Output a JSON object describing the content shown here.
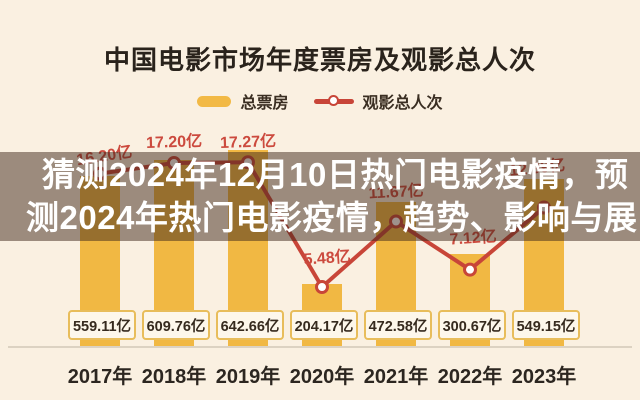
{
  "title": "中国电影市场年度票房及观影总人次",
  "legend": {
    "bar_label": "总票房",
    "line_label": "观影总人次"
  },
  "overlay_banner": {
    "line1": "猜测2024年12月10日热门电影疫情，预",
    "line2": "测2024年热门电影疫情，趋势、影响与展"
  },
  "colors": {
    "background": "#faf0e1",
    "bar": "#f1b843",
    "line": "#c84538",
    "line_label_text": "#cc4a3e",
    "value_box_border": "#e8bd5b",
    "value_box_bg": "#fdf7eb",
    "overlay_bg": "rgba(62,38,26,0.5)",
    "title_text": "#2a231c"
  },
  "chart_data": {
    "type": "bar",
    "subtype": "bar-with-line-overlay",
    "title": "中国电影市场年度票房及观影总人次",
    "categories": [
      "2017年",
      "2018年",
      "2019年",
      "2020年",
      "2021年",
      "2022年",
      "2023年"
    ],
    "series": [
      {
        "name": "总票房",
        "type": "bar",
        "unit": "亿",
        "values": [
          559.11,
          609.76,
          642.66,
          204.17,
          472.58,
          300.67,
          549.15
        ],
        "labels": [
          "559.11亿",
          "609.76亿",
          "642.66亿",
          "204.17亿",
          "472.58亿",
          "300.67亿",
          "549.15亿"
        ]
      },
      {
        "name": "观影总人次",
        "type": "line",
        "unit": "亿",
        "values": [
          16.2,
          17.2,
          17.27,
          5.48,
          11.67,
          7.12,
          12.99
        ],
        "labels": [
          "16.20亿",
          "17.20亿",
          "17.27亿",
          "5.48亿",
          "11.67亿",
          "7.12亿",
          "12.99亿"
        ]
      }
    ],
    "legend_position": "top",
    "grid": false,
    "xlabel": "",
    "ylabel": ""
  }
}
